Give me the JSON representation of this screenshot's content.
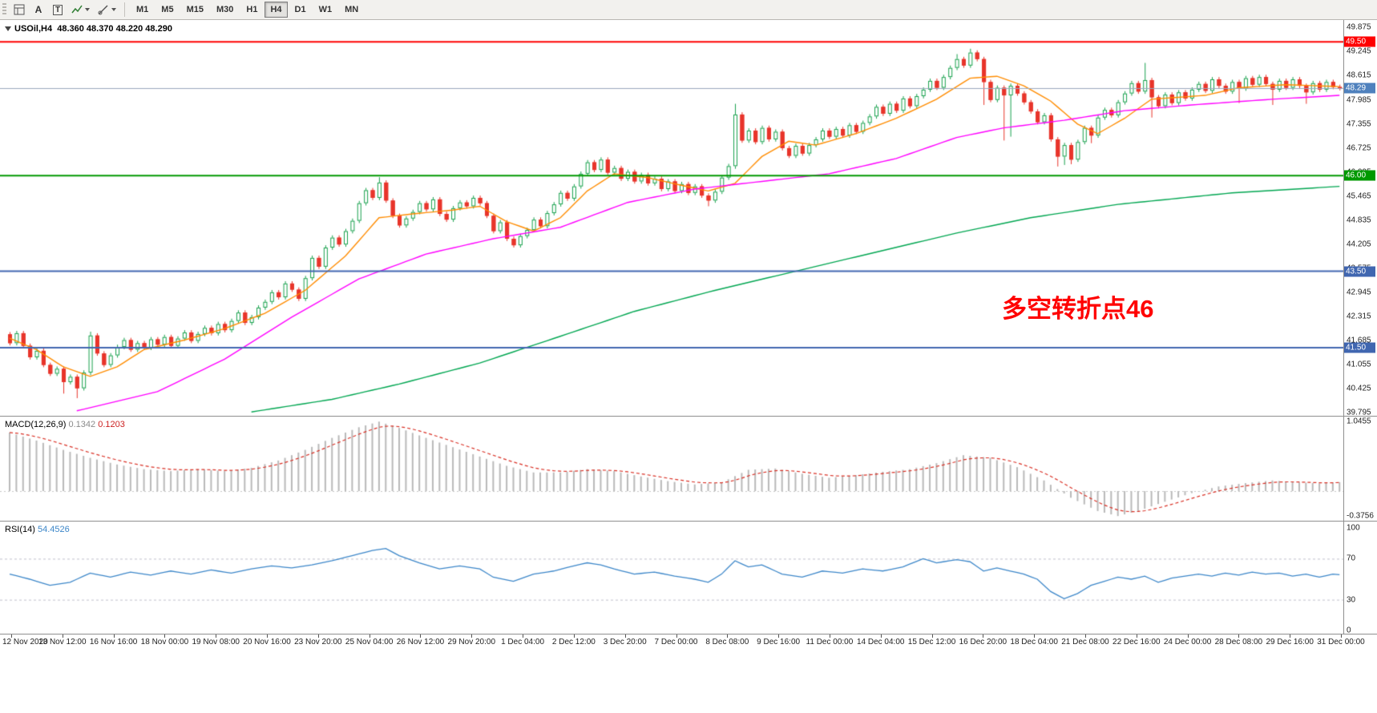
{
  "toolbar": {
    "icon_a": "A",
    "icon_t": "T",
    "timeframes": [
      "M1",
      "M5",
      "M15",
      "M30",
      "H1",
      "H4",
      "D1",
      "W1",
      "MN"
    ],
    "active_timeframe": "H4"
  },
  "chart": {
    "header": {
      "symbol_period": "USOil,H4",
      "ohlc_text": "48.360 48.370 48.220 48.290"
    },
    "annotation": {
      "text": "多空转折点46",
      "color": "#ff0000"
    }
  },
  "indicators": {
    "macd": {
      "name_label": "MACD(12,26,9)",
      "value1": "0.1342",
      "value2": "0.1203"
    },
    "rsi": {
      "name_label": "RSI(14)",
      "value": "54.4526"
    }
  },
  "chart_data": [
    {
      "type": "candlestick",
      "title": "USOil,H4",
      "colors": {
        "up": "#18a14d",
        "up_fill": "#ffffff",
        "down": "#e8352b",
        "bid_line": "#9aa7bd"
      },
      "price_axis": {
        "max_price": 50.05,
        "min_price": 39.72,
        "tick_values": [
          49.875,
          49.245,
          48.615,
          47.985,
          47.355,
          46.725,
          46.095,
          45.465,
          44.835,
          44.205,
          43.575,
          42.945,
          42.315,
          41.685,
          41.055,
          40.425,
          39.795
        ]
      },
      "levels": [
        {
          "price": 49.5,
          "color": "#ff0000",
          "label": "49.50"
        },
        {
          "price": 46.0,
          "color": "#009900",
          "label": "46.00"
        },
        {
          "price": 43.5,
          "color": "#4066b0",
          "label": "43.50"
        },
        {
          "price": 41.5,
          "color": "#4066b0",
          "label": "41.50"
        }
      ],
      "current_price": {
        "value": 48.29,
        "label": "48.29",
        "color": "#4f81bd"
      },
      "first_open": 41.85,
      "wick": 0.06,
      "closes": [
        41.62,
        41.88,
        41.55,
        41.25,
        41.42,
        41.05,
        40.82,
        40.95,
        40.6,
        40.74,
        40.44,
        40.85,
        41.82,
        41.35,
        41.05,
        41.3,
        41.52,
        41.7,
        41.45,
        41.62,
        41.5,
        41.72,
        41.58,
        41.78,
        41.55,
        41.74,
        41.9,
        41.68,
        41.86,
        42.02,
        41.88,
        42.12,
        41.96,
        42.2,
        42.42,
        42.15,
        42.3,
        42.55,
        42.7,
        42.95,
        42.82,
        43.18,
        43.02,
        42.78,
        43.32,
        43.85,
        43.62,
        44.12,
        44.38,
        44.2,
        44.55,
        44.82,
        45.28,
        45.62,
        45.42,
        45.82,
        45.35,
        44.95,
        44.7,
        44.88,
        45.05,
        45.28,
        45.12,
        45.38,
        45.0,
        44.85,
        45.15,
        45.3,
        45.2,
        45.42,
        45.28,
        44.95,
        44.55,
        44.78,
        44.35,
        44.18,
        44.42,
        44.58,
        44.85,
        44.68,
        45.02,
        45.25,
        45.55,
        45.4,
        45.72,
        46.05,
        46.35,
        46.15,
        46.42,
        46.08,
        46.2,
        45.92,
        46.1,
        45.85,
        46.02,
        45.8,
        45.92,
        45.65,
        45.85,
        45.6,
        45.78,
        45.55,
        45.72,
        45.48,
        45.35,
        45.58,
        45.95,
        46.25,
        47.6,
        46.92,
        47.18,
        46.88,
        47.25,
        46.95,
        47.15,
        46.72,
        46.52,
        46.78,
        46.58,
        46.8,
        46.95,
        47.18,
        47.02,
        47.22,
        47.05,
        47.32,
        47.15,
        47.38,
        47.55,
        47.8,
        47.62,
        47.88,
        47.7,
        48.02,
        47.82,
        48.08,
        48.25,
        48.48,
        48.3,
        48.58,
        48.82,
        49.05,
        48.88,
        49.22,
        49.05,
        48.45,
        47.98,
        48.3,
        48.1,
        48.35,
        48.15,
        47.92,
        47.68,
        47.4,
        47.58,
        46.95,
        46.5,
        46.8,
        46.42,
        46.88,
        47.25,
        47.05,
        47.52,
        47.72,
        47.58,
        47.92,
        48.15,
        48.42,
        48.2,
        48.5,
        48.05,
        47.82,
        48.12,
        47.9,
        48.18,
        48.02,
        48.25,
        48.4,
        48.22,
        48.52,
        48.35,
        48.2,
        48.45,
        48.28,
        48.55,
        48.38,
        48.58,
        48.4,
        48.25,
        48.48,
        48.3,
        48.52,
        48.35,
        48.18,
        48.42,
        48.25,
        48.45,
        48.32,
        48.29
      ],
      "wick_overrides": {
        "8": [
          null,
          40.3
        ],
        "10": [
          null,
          40.18
        ],
        "12": [
          41.92,
          40.78
        ],
        "55": [
          45.96,
          null
        ],
        "104": [
          null,
          45.2
        ],
        "108": [
          47.88,
          46.18
        ],
        "141": [
          49.18,
          null
        ],
        "143": [
          49.32,
          null
        ],
        "144": [
          49.28,
          null
        ],
        "145": [
          null,
          47.85
        ],
        "148": [
          null,
          46.92
        ],
        "149": [
          null,
          47.02
        ],
        "156": [
          null,
          46.24
        ],
        "157": [
          null,
          46.28
        ],
        "158": [
          null,
          46.3
        ],
        "161": [
          null,
          46.85
        ],
        "169": [
          48.95,
          null
        ],
        "170": [
          null,
          47.52
        ],
        "183": [
          null,
          47.9
        ],
        "188": [
          null,
          47.85
        ],
        "193": [
          null,
          47.88
        ]
      },
      "moving_averages": [
        {
          "name": "MA-fast",
          "color": "#ff8c00",
          "points": [
            [
              0,
              41.75
            ],
            [
              4,
              41.45
            ],
            [
              8,
              41.0
            ],
            [
              12,
              40.75
            ],
            [
              16,
              41.0
            ],
            [
              20,
              41.45
            ],
            [
              26,
              41.7
            ],
            [
              32,
              42.0
            ],
            [
              38,
              42.4
            ],
            [
              44,
              43.0
            ],
            [
              50,
              43.9
            ],
            [
              55,
              44.9
            ],
            [
              60,
              45.0
            ],
            [
              66,
              45.1
            ],
            [
              70,
              45.2
            ],
            [
              74,
              44.8
            ],
            [
              78,
              44.55
            ],
            [
              82,
              44.9
            ],
            [
              86,
              45.6
            ],
            [
              90,
              46.05
            ],
            [
              95,
              45.95
            ],
            [
              100,
              45.75
            ],
            [
              104,
              45.6
            ],
            [
              108,
              45.8
            ],
            [
              112,
              46.5
            ],
            [
              116,
              46.9
            ],
            [
              120,
              46.8
            ],
            [
              126,
              47.1
            ],
            [
              132,
              47.5
            ],
            [
              138,
              48.0
            ],
            [
              143,
              48.55
            ],
            [
              147,
              48.6
            ],
            [
              151,
              48.35
            ],
            [
              155,
              47.95
            ],
            [
              159,
              47.35
            ],
            [
              162,
              47.1
            ],
            [
              166,
              47.5
            ],
            [
              170,
              48.0
            ],
            [
              174,
              48.05
            ],
            [
              178,
              48.1
            ],
            [
              183,
              48.3
            ],
            [
              190,
              48.38
            ],
            [
              198,
              48.33
            ]
          ]
        },
        {
          "name": "MA-mid",
          "color": "#ff00ff",
          "points": [
            [
              10,
              39.85
            ],
            [
              22,
              40.35
            ],
            [
              32,
              41.2
            ],
            [
              42,
              42.3
            ],
            [
              52,
              43.3
            ],
            [
              62,
              43.95
            ],
            [
              72,
              44.35
            ],
            [
              82,
              44.65
            ],
            [
              92,
              45.3
            ],
            [
              102,
              45.65
            ],
            [
              112,
              45.85
            ],
            [
              122,
              46.05
            ],
            [
              132,
              46.45
            ],
            [
              141,
              47.0
            ],
            [
              148,
              47.25
            ],
            [
              157,
              47.45
            ],
            [
              166,
              47.7
            ],
            [
              176,
              47.85
            ],
            [
              188,
              48.0
            ],
            [
              198,
              48.1
            ]
          ]
        },
        {
          "name": "MA-slow",
          "color": "#00a651",
          "points": [
            [
              36,
              39.82
            ],
            [
              48,
              40.15
            ],
            [
              58,
              40.55
            ],
            [
              70,
              41.1
            ],
            [
              82,
              41.8
            ],
            [
              93,
              42.45
            ],
            [
              105,
              43.0
            ],
            [
              117,
              43.5
            ],
            [
              129,
              44.0
            ],
            [
              141,
              44.5
            ],
            [
              152,
              44.9
            ],
            [
              165,
              45.25
            ],
            [
              182,
              45.55
            ],
            [
              198,
              45.72
            ]
          ]
        }
      ],
      "x_tick_labels": [
        "12 Nov 2020",
        "13 Nov 12:00",
        "16 Nov 16:00",
        "18 Nov 00:00",
        "19 Nov 08:00",
        "20 Nov 16:00",
        "23 Nov 20:00",
        "25 Nov 04:00",
        "26 Nov 12:00",
        "29 Nov 20:00",
        "1 Dec 04:00",
        "2 Dec 12:00",
        "3 Dec 20:00",
        "7 Dec 00:00",
        "8 Dec 08:00",
        "9 Dec 16:00",
        "11 Dec 00:00",
        "14 Dec 04:00",
        "15 Dec 12:00",
        "16 Dec 20:00",
        "18 Dec 04:00",
        "21 Dec 08:00",
        "22 Dec 16:00",
        "24 Dec 00:00",
        "28 Dec 08:00",
        "29 Dec 16:00",
        "31 Dec 00:00"
      ]
    },
    {
      "type": "bar",
      "title": "MACD(12,26,9)",
      "current_values": [
        0.1342,
        0.1203
      ],
      "axis": {
        "max": 1.0455,
        "min": -0.3756
      },
      "histogram_color": "#b9b9b9",
      "signal_color": "#d93025",
      "points": [
        [
          0,
          0.88
        ],
        [
          4,
          0.76
        ],
        [
          8,
          0.62
        ],
        [
          12,
          0.5
        ],
        [
          16,
          0.4
        ],
        [
          20,
          0.33
        ],
        [
          24,
          0.3
        ],
        [
          28,
          0.33
        ],
        [
          32,
          0.3
        ],
        [
          36,
          0.35
        ],
        [
          40,
          0.46
        ],
        [
          44,
          0.62
        ],
        [
          48,
          0.8
        ],
        [
          52,
          0.96
        ],
        [
          55,
          1.045
        ],
        [
          58,
          0.95
        ],
        [
          62,
          0.8
        ],
        [
          66,
          0.66
        ],
        [
          70,
          0.52
        ],
        [
          74,
          0.38
        ],
        [
          78,
          0.28
        ],
        [
          82,
          0.28
        ],
        [
          86,
          0.33
        ],
        [
          90,
          0.3
        ],
        [
          94,
          0.22
        ],
        [
          98,
          0.15
        ],
        [
          102,
          0.1
        ],
        [
          106,
          0.13
        ],
        [
          110,
          0.32
        ],
        [
          114,
          0.34
        ],
        [
          118,
          0.26
        ],
        [
          122,
          0.2
        ],
        [
          126,
          0.24
        ],
        [
          130,
          0.29
        ],
        [
          134,
          0.33
        ],
        [
          138,
          0.42
        ],
        [
          142,
          0.54
        ],
        [
          146,
          0.5
        ],
        [
          150,
          0.36
        ],
        [
          154,
          0.16
        ],
        [
          158,
          -0.1
        ],
        [
          162,
          -0.3
        ],
        [
          165,
          -0.3756
        ],
        [
          168,
          -0.3
        ],
        [
          172,
          -0.16
        ],
        [
          176,
          -0.03
        ],
        [
          180,
          0.07
        ],
        [
          184,
          0.12
        ],
        [
          188,
          0.16
        ],
        [
          192,
          0.13
        ],
        [
          195,
          0.115
        ],
        [
          198,
          0.1342
        ]
      ]
    },
    {
      "type": "line",
      "title": "RSI(14)",
      "current_value": 54.4526,
      "axis_labels": [
        100,
        70,
        30,
        0
      ],
      "level_lines": [
        70,
        30
      ],
      "color": "#3d87c9",
      "points": [
        [
          0,
          55
        ],
        [
          3,
          50
        ],
        [
          6,
          44
        ],
        [
          9,
          47
        ],
        [
          12,
          56
        ],
        [
          15,
          52
        ],
        [
          18,
          57
        ],
        [
          21,
          54
        ],
        [
          24,
          58
        ],
        [
          27,
          55
        ],
        [
          30,
          59
        ],
        [
          33,
          56
        ],
        [
          36,
          60
        ],
        [
          39,
          63
        ],
        [
          42,
          61
        ],
        [
          45,
          64
        ],
        [
          48,
          68
        ],
        [
          51,
          73
        ],
        [
          54,
          78
        ],
        [
          56,
          80
        ],
        [
          58,
          73
        ],
        [
          61,
          66
        ],
        [
          64,
          60
        ],
        [
          67,
          63
        ],
        [
          70,
          60
        ],
        [
          72,
          52
        ],
        [
          75,
          48
        ],
        [
          78,
          55
        ],
        [
          81,
          58
        ],
        [
          84,
          63
        ],
        [
          86,
          66
        ],
        [
          88,
          64
        ],
        [
          90,
          60
        ],
        [
          93,
          55
        ],
        [
          96,
          57
        ],
        [
          99,
          53
        ],
        [
          102,
          50
        ],
        [
          104,
          47
        ],
        [
          106,
          55
        ],
        [
          108,
          68
        ],
        [
          110,
          62
        ],
        [
          112,
          64
        ],
        [
          115,
          55
        ],
        [
          118,
          52
        ],
        [
          121,
          58
        ],
        [
          124,
          56
        ],
        [
          127,
          60
        ],
        [
          130,
          58
        ],
        [
          133,
          62
        ],
        [
          136,
          70
        ],
        [
          138,
          66
        ],
        [
          141,
          69
        ],
        [
          143,
          67
        ],
        [
          145,
          58
        ],
        [
          147,
          61
        ],
        [
          149,
          58
        ],
        [
          151,
          55
        ],
        [
          153,
          50
        ],
        [
          155,
          38
        ],
        [
          157,
          31
        ],
        [
          159,
          36
        ],
        [
          161,
          44
        ],
        [
          163,
          48
        ],
        [
          165,
          52
        ],
        [
          167,
          50
        ],
        [
          169,
          53
        ],
        [
          171,
          47
        ],
        [
          173,
          51
        ],
        [
          175,
          53
        ],
        [
          177,
          55
        ],
        [
          179,
          53
        ],
        [
          181,
          56
        ],
        [
          183,
          54
        ],
        [
          185,
          57
        ],
        [
          187,
          55
        ],
        [
          189,
          56
        ],
        [
          191,
          53
        ],
        [
          193,
          55
        ],
        [
          195,
          52
        ],
        [
          197,
          55
        ],
        [
          198,
          54.45
        ]
      ]
    }
  ]
}
